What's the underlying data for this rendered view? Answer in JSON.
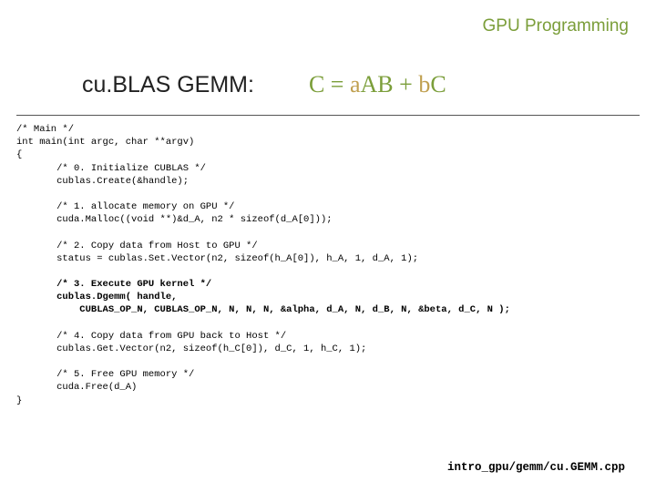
{
  "header": {
    "text": "GPU Programming",
    "color": "#7b9e3a"
  },
  "title": {
    "left": "cu.BLAS GEMM:",
    "formula_parts": [
      {
        "text": "C = ",
        "color": "#7b9e3a"
      },
      {
        "text": "a",
        "color": "#c0a050"
      },
      {
        "text": "AB",
        "color": "#7b9e3a"
      },
      {
        "text": " + ",
        "color": "#7b9e3a"
      },
      {
        "text": "b",
        "color": "#c0a050"
      },
      {
        "text": "C",
        "color": "#7b9e3a"
      }
    ]
  },
  "code": {
    "lines": [
      {
        "t": "/* Main */",
        "b": false,
        "i": 0
      },
      {
        "t": "int main(int argc, char **argv)",
        "b": false,
        "i": 0
      },
      {
        "t": "{",
        "b": false,
        "i": 0
      },
      {
        "t": "/* 0. Initialize CUBLAS */",
        "b": false,
        "i": 1
      },
      {
        "t": "cublas.Create(&handle);",
        "b": false,
        "i": 1
      },
      {
        "t": "",
        "b": false,
        "i": 0
      },
      {
        "t": "/* 1. allocate memory on GPU */",
        "b": false,
        "i": 1
      },
      {
        "t": "cuda.Malloc((void **)&d_A, n2 * sizeof(d_A[0]));",
        "b": false,
        "i": 1
      },
      {
        "t": "",
        "b": false,
        "i": 0
      },
      {
        "t": "/* 2. Copy data from Host to GPU */",
        "b": false,
        "i": 1
      },
      {
        "t": "status = cublas.Set.Vector(n2, sizeof(h_A[0]), h_A, 1, d_A, 1);",
        "b": false,
        "i": 1
      },
      {
        "t": "",
        "b": false,
        "i": 0
      },
      {
        "t": "/* 3. Execute GPU kernel */",
        "b": true,
        "i": 1
      },
      {
        "t": "cublas.Dgemm( handle,",
        "b": true,
        "i": 1
      },
      {
        "t": "    CUBLAS_OP_N, CUBLAS_OP_N, N, N, N, &alpha, d_A, N, d_B, N, &beta, d_C, N );",
        "b": true,
        "i": 1
      },
      {
        "t": "",
        "b": false,
        "i": 0
      },
      {
        "t": "/* 4. Copy data from GPU back to Host */",
        "b": false,
        "i": 1
      },
      {
        "t": "cublas.Get.Vector(n2, sizeof(h_C[0]), d_C, 1, h_C, 1);",
        "b": false,
        "i": 1
      },
      {
        "t": "",
        "b": false,
        "i": 0
      },
      {
        "t": "/* 5. Free GPU memory */",
        "b": false,
        "i": 1
      },
      {
        "t": "cuda.Free(d_A)",
        "b": false,
        "i": 1
      },
      {
        "t": "}",
        "b": false,
        "i": 0
      }
    ],
    "indent_unit": "       "
  },
  "footer": {
    "text": "intro_gpu/gemm/cu.GEMM.cpp"
  }
}
